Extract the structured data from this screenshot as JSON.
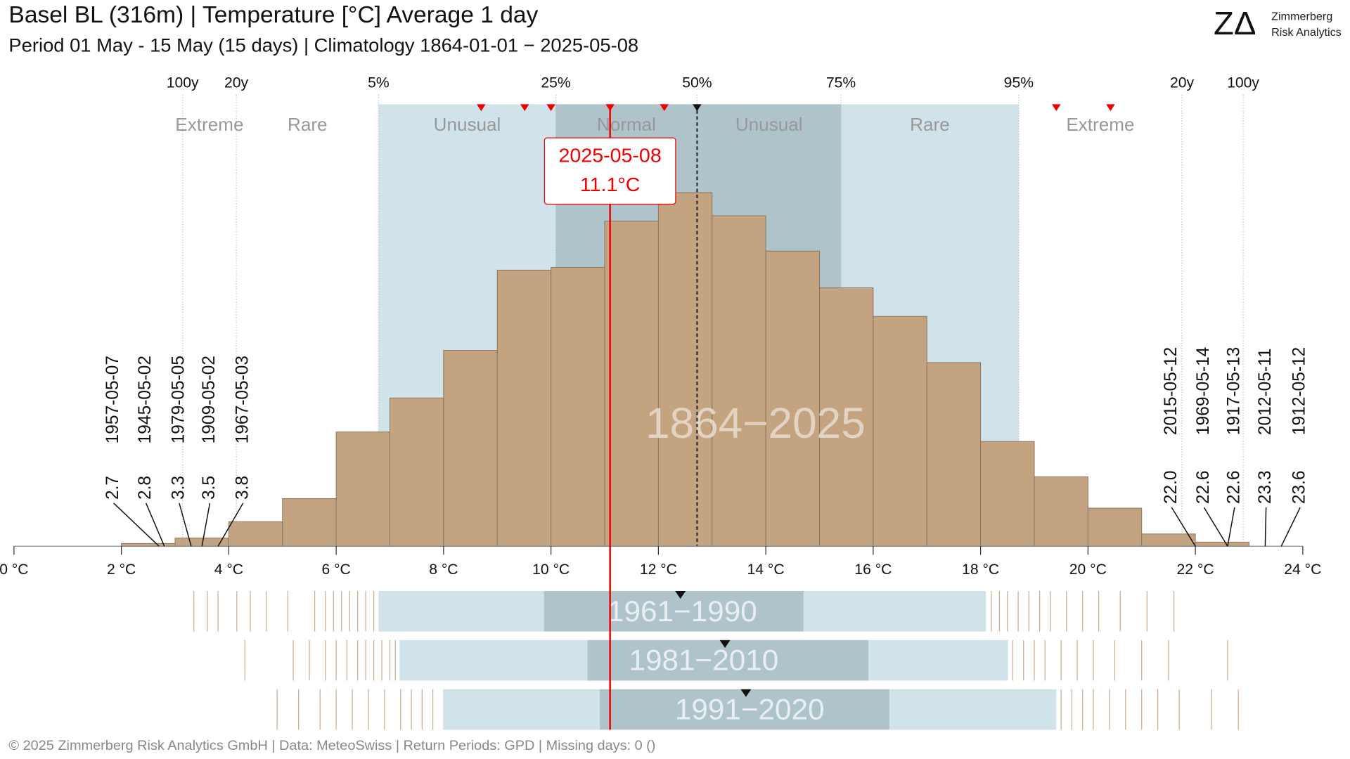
{
  "chart_data": {
    "type": "histogram",
    "title": "Basel  BL (316m) | Temperature [°C] Average 1 day",
    "subtitle": "Period 01 May - 15 May (15 days) | Climatology 1864-01-01 − 2025-05-08",
    "brand": {
      "logo": "ZΔ",
      "line1": "Zimmerberg",
      "line2": "Risk Analytics"
    },
    "footer": "©  2025 Zimmerberg Risk Analytics GmbH | Data: MeteoSwiss | Return Periods: GPD | Missing days: 0 ()",
    "bins": [
      2,
      3,
      4,
      5,
      6,
      7,
      8,
      9,
      10,
      11,
      12,
      13,
      14,
      15,
      16,
      17,
      18,
      19,
      20,
      21,
      22,
      23
    ],
    "counts": [
      2,
      6,
      18,
      35,
      84,
      109,
      144,
      203,
      205,
      239,
      260,
      243,
      217,
      190,
      169,
      135,
      77,
      51,
      28,
      9,
      3
    ],
    "color": "#c4a381",
    "xlim": [
      0,
      24
    ],
    "ylim": [
      0,
      325
    ],
    "xticks": [
      {
        "value": 0,
        "label": "0 °C"
      },
      {
        "value": 2,
        "label": "2 °C"
      },
      {
        "value": 4,
        "label": "4 °C"
      },
      {
        "value": 6,
        "label": "6 °C"
      },
      {
        "value": 8,
        "label": "8 °C"
      },
      {
        "value": 10,
        "label": "10 °C"
      },
      {
        "value": 12,
        "label": "12 °C"
      },
      {
        "value": 14,
        "label": "14 °C"
      },
      {
        "value": 16,
        "label": "16 °C"
      },
      {
        "value": 18,
        "label": "18 °C"
      },
      {
        "value": 20,
        "label": "20 °C"
      },
      {
        "value": 22,
        "label": "22 °C"
      },
      {
        "value": 24,
        "label": "24 °C"
      }
    ],
    "top_ticks": [
      {
        "value": 3.14,
        "label": "100y"
      },
      {
        "value": 4.14,
        "label": "20y"
      },
      {
        "value": 6.79,
        "label": "5%"
      },
      {
        "value": 10.09,
        "label": "25%"
      },
      {
        "value": 12.72,
        "label": "50%"
      },
      {
        "value": 15.4,
        "label": "75%"
      },
      {
        "value": 18.71,
        "label": "95%"
      },
      {
        "value": 21.75,
        "label": "20y"
      },
      {
        "value": 22.89,
        "label": "100y"
      }
    ],
    "zones": [
      "Extreme",
      "Rare",
      "Unusual",
      "Normal",
      "Unusual",
      "Rare",
      "Extreme"
    ],
    "markers": [
      8.7,
      9.51,
      10.0,
      11.1,
      12.11,
      19.41,
      20.42
    ],
    "current": {
      "label": "2025-05-08",
      "value": 11.1,
      "value_label": "11.1°C"
    },
    "watermark": "1864−2025",
    "record_lows": [
      {
        "date": "1957-05-07",
        "value": 2.7
      },
      {
        "date": "1945-05-02",
        "value": 2.8
      },
      {
        "date": "1979-05-05",
        "value": 3.3
      },
      {
        "date": "1909-05-02",
        "value": 3.5
      },
      {
        "date": "1967-05-03",
        "value": 3.8
      }
    ],
    "record_highs": [
      {
        "date": "2015-05-12",
        "value": 22,
        "value_label": "22.0"
      },
      {
        "date": "1969-05-14",
        "value": 22.6
      },
      {
        "date": "1917-05-13",
        "value": 22.6
      },
      {
        "date": "2012-05-11",
        "value": 23.3
      },
      {
        "date": "1912-05-12",
        "value": 23.6
      }
    ],
    "periods": [
      {
        "label": "1961−1990",
        "p5": 6.79,
        "p25": 9.87,
        "median": 12.41,
        "p75": 14.7,
        "p95": 18.1,
        "rug": [
          3.35,
          3.6,
          3.8,
          4.15,
          4.4,
          4.7,
          5.1,
          5.6,
          5.8,
          5.95,
          6.1,
          6.25,
          6.4,
          6.55,
          6.7,
          18.2,
          18.35,
          18.5,
          18.7,
          18.9,
          19.1,
          19.3,
          19.6,
          19.9,
          20.2,
          20.6,
          21.1,
          21.6
        ]
      },
      {
        "label": "1981−2010",
        "p5": 7.18,
        "p25": 10.68,
        "median": 13.24,
        "p75": 15.91,
        "p95": 18.51,
        "rug": [
          4.3,
          5.2,
          5.5,
          5.8,
          6.0,
          6.2,
          6.4,
          6.55,
          6.7,
          6.85,
          7.0,
          7.1,
          18.6,
          18.8,
          19.0,
          19.2,
          19.5,
          19.8,
          20.1,
          20.5,
          21.0,
          21.5,
          22.6
        ]
      },
      {
        "label": "1991−2020",
        "p5": 7.99,
        "p25": 10.91,
        "median": 13.63,
        "p75": 16.3,
        "p95": 19.41,
        "rug": [
          4.9,
          5.3,
          5.7,
          6.0,
          6.3,
          6.6,
          6.9,
          7.2,
          7.4,
          7.6,
          7.8,
          19.5,
          19.7,
          19.9,
          20.1,
          20.4,
          20.7,
          21.0,
          21.3,
          21.7,
          22.3,
          22.8
        ]
      }
    ]
  }
}
